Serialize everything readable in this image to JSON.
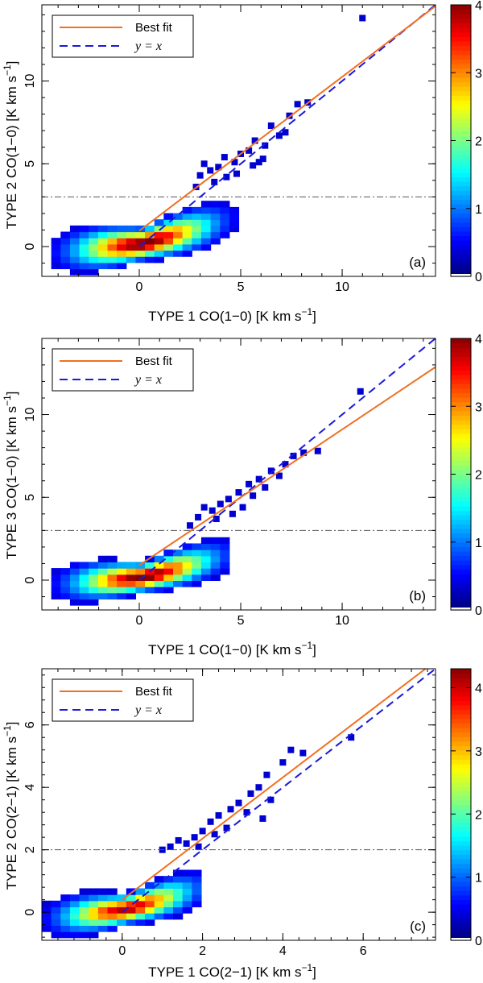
{
  "chart_data": [
    {
      "type": "heatmap",
      "panel_label": "(a)",
      "xlabel_main": "TYPE 1 CO(1−0) [K km s",
      "ylabel_main": "TYPE 2 CO(1−0) [K km s",
      "unit_exponent": "−1",
      "unit_close": "]",
      "xlim": [
        -4.8,
        14.6
      ],
      "ylim": [
        -1.8,
        14.6
      ],
      "xticks": [
        0,
        5,
        10
      ],
      "yticks": [
        0,
        5,
        10
      ],
      "tick_labels_x": [
        "0",
        "5",
        "10"
      ],
      "tick_labels_y": [
        "0",
        "5",
        "10"
      ],
      "colorbar": {
        "range": [
          0,
          4
        ],
        "ticks": [
          0,
          1,
          2,
          3,
          4
        ],
        "labels": [
          "0",
          "1",
          "2",
          "3",
          "4"
        ]
      },
      "legend": {
        "position": "top-left",
        "entries": [
          "Best fit",
          "y = x"
        ]
      },
      "threshold_y": 3,
      "best_fit": {
        "slope": 0.93,
        "intercept": 0.95,
        "color": "#f07020"
      },
      "identity_color": "#1a1ad8",
      "core": {
        "cx": 0,
        "cy": 0,
        "sx": 1.6,
        "sy": 0.5,
        "tilt": 0.12,
        "min_x": -4.8,
        "max_x": 4.5
      },
      "outliers": [
        [
          11.0,
          13.8
        ],
        [
          8.3,
          8.7
        ],
        [
          7.8,
          8.6
        ],
        [
          7.4,
          7.9
        ],
        [
          6.5,
          7.3
        ],
        [
          6.9,
          6.7
        ],
        [
          5.7,
          6.4
        ],
        [
          6.2,
          6.1
        ],
        [
          5.0,
          5.6
        ],
        [
          5.4,
          5.8
        ],
        [
          4.7,
          5.1
        ],
        [
          4.2,
          5.4
        ],
        [
          3.9,
          4.8
        ],
        [
          3.5,
          4.6
        ],
        [
          3.2,
          5.0
        ],
        [
          5.6,
          4.9
        ],
        [
          4.8,
          4.4
        ],
        [
          4.3,
          4.2
        ],
        [
          3.7,
          3.9
        ],
        [
          3.0,
          4.3
        ],
        [
          2.8,
          3.6
        ],
        [
          6.1,
          5.3
        ],
        [
          7.2,
          6.9
        ],
        [
          5.9,
          5.1
        ]
      ]
    },
    {
      "type": "heatmap",
      "panel_label": "(b)",
      "xlabel_main": "TYPE 1 CO(1−0) [K km s",
      "ylabel_main": "TYPE 3 CO(1−0) [K km s",
      "unit_exponent": "−1",
      "unit_close": "]",
      "xlim": [
        -4.8,
        14.6
      ],
      "ylim": [
        -1.8,
        14.6
      ],
      "xticks": [
        0,
        5,
        10
      ],
      "yticks": [
        0,
        5,
        10
      ],
      "tick_labels_x": [
        "0",
        "5",
        "10"
      ],
      "tick_labels_y": [
        "0",
        "5",
        "10"
      ],
      "colorbar": {
        "range": [
          0,
          4
        ],
        "ticks": [
          0,
          1,
          2,
          3,
          4
        ],
        "labels": [
          "0",
          "1",
          "2",
          "3",
          "4"
        ]
      },
      "legend": {
        "position": "top-left",
        "entries": [
          "Best fit",
          "y = x"
        ]
      },
      "threshold_y": 3,
      "best_fit": {
        "slope": 0.82,
        "intercept": 0.9,
        "color": "#f07020"
      },
      "identity_color": "#1a1ad8",
      "core": {
        "cx": 0,
        "cy": 0,
        "sx": 1.6,
        "sy": 0.45,
        "tilt": 0.1,
        "min_x": -4.8,
        "max_x": 4.4
      },
      "outliers": [
        [
          10.9,
          11.4
        ],
        [
          8.8,
          7.8
        ],
        [
          8.1,
          7.7
        ],
        [
          7.6,
          7.5
        ],
        [
          7.2,
          7.0
        ],
        [
          6.5,
          6.6
        ],
        [
          5.9,
          6.1
        ],
        [
          5.4,
          5.8
        ],
        [
          6.2,
          5.6
        ],
        [
          4.9,
          5.3
        ],
        [
          4.4,
          4.9
        ],
        [
          4.0,
          4.6
        ],
        [
          3.6,
          4.2
        ],
        [
          3.2,
          4.4
        ],
        [
          5.1,
          4.4
        ],
        [
          4.6,
          4.0
        ],
        [
          3.8,
          3.7
        ],
        [
          2.9,
          3.8
        ],
        [
          2.5,
          3.3
        ],
        [
          6.9,
          6.3
        ],
        [
          5.6,
          5.1
        ]
      ]
    },
    {
      "type": "heatmap",
      "panel_label": "(c)",
      "xlabel_main": "TYPE 1 CO(2−1) [K km s",
      "ylabel_main": "TYPE 2 CO(2−1) [K km s",
      "unit_exponent": "−1",
      "unit_close": "]",
      "xlim": [
        -2.0,
        7.8
      ],
      "ylim": [
        -0.9,
        7.8
      ],
      "xticks": [
        0,
        2,
        4,
        6
      ],
      "yticks": [
        0,
        2,
        4,
        6
      ],
      "tick_labels_x": [
        "0",
        "2",
        "4",
        "6"
      ],
      "tick_labels_y": [
        "0",
        "2",
        "4",
        "6"
      ],
      "colorbar": {
        "range": [
          0,
          4.3
        ],
        "ticks": [
          0,
          1,
          2,
          3,
          4
        ],
        "labels": [
          "0",
          "1",
          "2",
          "3",
          "4"
        ]
      },
      "legend": {
        "position": "top-left",
        "entries": [
          "Best fit",
          "y = x"
        ]
      },
      "threshold_y": 2,
      "best_fit": {
        "slope": 0.98,
        "intercept": 0.4,
        "color": "#f07020"
      },
      "identity_color": "#1a1ad8",
      "core": {
        "cx": 0,
        "cy": 0,
        "sx": 0.75,
        "sy": 0.25,
        "tilt": 0.15,
        "min_x": -2.0,
        "max_x": 1.9
      },
      "outliers": [
        [
          5.7,
          5.6
        ],
        [
          4.2,
          5.2
        ],
        [
          4.5,
          5.1
        ],
        [
          4.0,
          4.8
        ],
        [
          3.6,
          4.4
        ],
        [
          3.4,
          4.0
        ],
        [
          3.2,
          3.8
        ],
        [
          3.7,
          3.6
        ],
        [
          2.9,
          3.5
        ],
        [
          2.7,
          3.3
        ],
        [
          3.1,
          3.2
        ],
        [
          2.4,
          3.1
        ],
        [
          2.2,
          2.9
        ],
        [
          2.6,
          2.7
        ],
        [
          2.0,
          2.6
        ],
        [
          1.8,
          2.4
        ],
        [
          1.6,
          2.2
        ],
        [
          1.2,
          2.1
        ],
        [
          1.0,
          2.0
        ],
        [
          1.4,
          2.3
        ],
        [
          3.5,
          3.0
        ],
        [
          2.3,
          2.5
        ],
        [
          1.9,
          2.1
        ]
      ]
    }
  ]
}
